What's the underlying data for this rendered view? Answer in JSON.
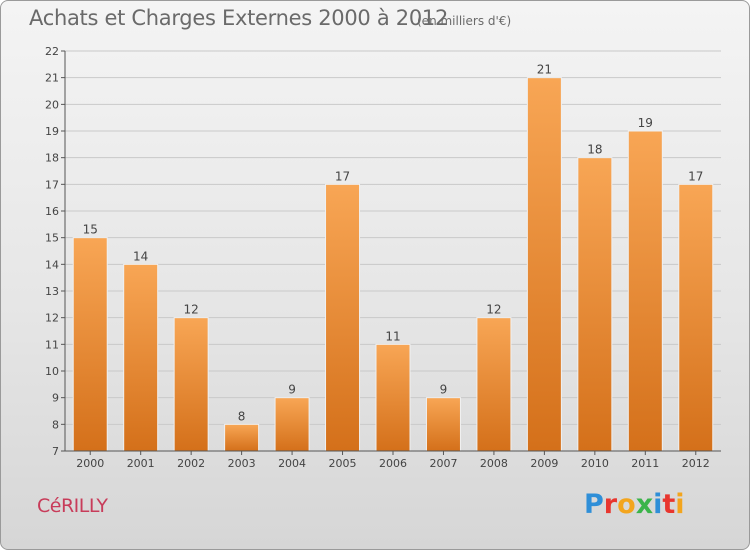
{
  "header": {
    "title": "Achats et Charges Externes 2000 à 2012",
    "subtitle": "(en milliers d'€)"
  },
  "footer": {
    "location": "CéRILLY",
    "brand_letters": [
      {
        "char": "P",
        "color": "#2f8fd8"
      },
      {
        "char": "r",
        "color": "#e8362f"
      },
      {
        "char": "o",
        "color": "#f3a51d"
      },
      {
        "char": "x",
        "color": "#3bb44a"
      },
      {
        "char": "i",
        "color": "#2f8fd8"
      },
      {
        "char": "t",
        "color": "#e8362f"
      },
      {
        "char": "i",
        "color": "#f3a51d"
      }
    ]
  },
  "chart_data": {
    "type": "bar",
    "categories": [
      "2000",
      "2001",
      "2002",
      "2003",
      "2004",
      "2005",
      "2006",
      "2007",
      "2008",
      "2009",
      "2010",
      "2011",
      "2012"
    ],
    "values": [
      15,
      14,
      12,
      8,
      9,
      17,
      11,
      9,
      12,
      21,
      18,
      19,
      17
    ],
    "data_labels": [
      "15",
      "14",
      "12",
      "8",
      "9",
      "17",
      "11",
      "9",
      "12",
      "21",
      "18",
      "19",
      "17"
    ],
    "yticks": [
      7,
      8,
      9,
      10,
      11,
      12,
      13,
      14,
      15,
      16,
      17,
      18,
      19,
      20,
      21,
      22
    ],
    "ylim": [
      7,
      22
    ],
    "grid": true,
    "bar_color_top": "#f8a655",
    "bar_color_bottom": "#d4701a"
  }
}
